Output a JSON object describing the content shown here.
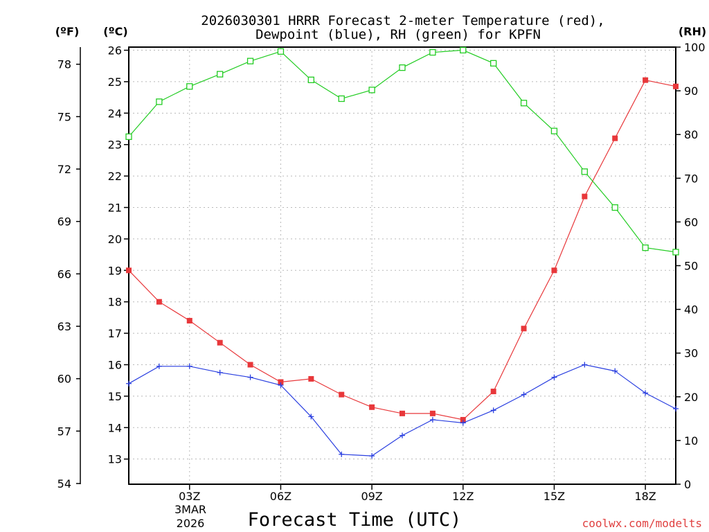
{
  "colors": {
    "temperature": "#e8373a",
    "dewpoint": "#2a3fe0",
    "rh": "#22cc22",
    "grid": "#b8b8b8",
    "credit": "#e04040"
  },
  "chart_data": {
    "type": "line",
    "title_line1": "2026030301 HRRR Forecast 2-meter Temperature (red),",
    "title_line2": "Dewpoint (blue), RH (green) for KPFN",
    "xlabel": "Forecast Time (UTC)",
    "date_label_line1": "3MAR",
    "date_label_line2": "2026",
    "credit": "coolwx.com/modelts",
    "unit_left_f": "(ºF)",
    "unit_left_c": "(ºC)",
    "unit_right_rh": "(RH)",
    "x_hours": [
      1,
      2,
      3,
      4,
      5,
      6,
      7,
      8,
      9,
      10,
      11,
      12,
      13,
      14,
      15,
      16,
      17,
      18,
      19
    ],
    "x_range": [
      1,
      19
    ],
    "x_ticks": [
      {
        "hour": 3,
        "label": "03Z"
      },
      {
        "hour": 6,
        "label": "06Z"
      },
      {
        "hour": 9,
        "label": "09Z"
      },
      {
        "hour": 12,
        "label": "12Z"
      },
      {
        "hour": 15,
        "label": "15Z"
      },
      {
        "hour": 18,
        "label": "18Z"
      }
    ],
    "celsius_axis": {
      "range": [
        12.2,
        26.1
      ],
      "ticks": [
        "13",
        "14",
        "15",
        "16",
        "17",
        "18",
        "19",
        "20",
        "21",
        "22",
        "23",
        "24",
        "25",
        "26"
      ]
    },
    "fahrenheit_axis": {
      "ticks": [
        "54",
        "57",
        "60",
        "63",
        "66",
        "69",
        "72",
        "75",
        "78"
      ]
    },
    "rh_axis": {
      "range": [
        0,
        100
      ],
      "ticks": [
        "0",
        "10",
        "20",
        "30",
        "40",
        "50",
        "60",
        "70",
        "80",
        "90",
        "100"
      ]
    },
    "series": [
      {
        "name": "Temperature (red)",
        "unit": "C",
        "values": [
          19.0,
          18.0,
          17.4,
          16.7,
          16.0,
          15.45,
          15.55,
          15.05,
          14.65,
          14.45,
          14.45,
          14.25,
          15.15,
          17.15,
          19.0,
          21.35,
          23.2,
          25.05,
          24.85
        ]
      },
      {
        "name": "Dewpoint (blue)",
        "unit": "C",
        "values": [
          15.4,
          15.95,
          15.95,
          15.75,
          15.6,
          15.35,
          14.35,
          13.15,
          13.1,
          13.75,
          14.25,
          14.15,
          14.55,
          15.05,
          15.6,
          16.0,
          15.8,
          15.1,
          14.6
        ]
      },
      {
        "name": "RH (green)",
        "unit": "%",
        "values": [
          79.5,
          87.5,
          91,
          93.8,
          96.8,
          99,
          92.5,
          88.2,
          90.2,
          95.3,
          98.8,
          99.3,
          96.3,
          87.2,
          80.8,
          71.5,
          63.3,
          54.1,
          53.1
        ]
      }
    ]
  }
}
